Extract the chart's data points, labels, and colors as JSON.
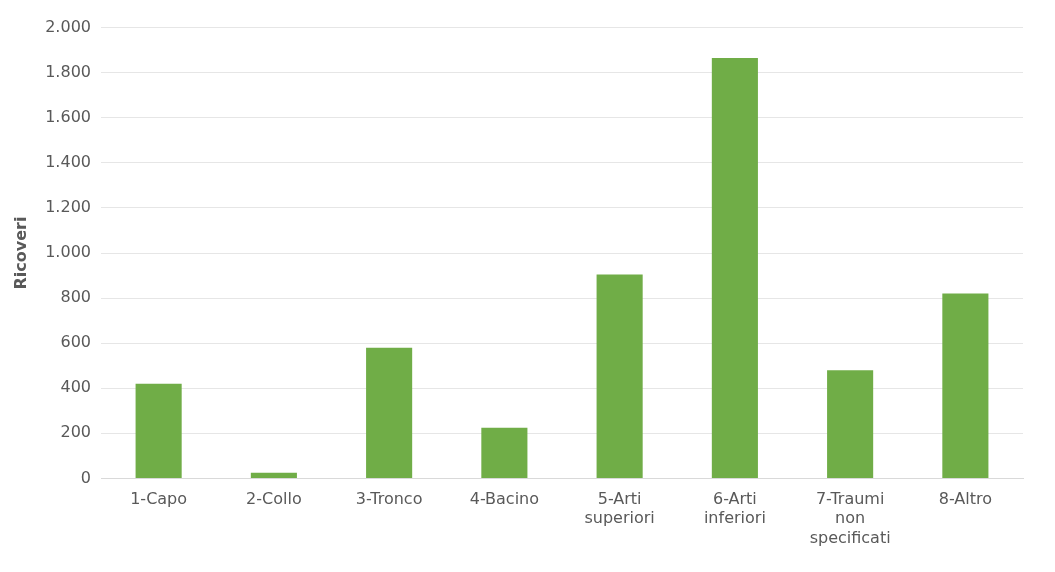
{
  "chart_data": {
    "type": "bar",
    "ylabel": "Ricoveri",
    "categories": [
      "1-Capo",
      "2-Collo",
      "3-Tronco",
      "4-Bacino",
      "5-Arti superiori",
      "6-Arti inferiori",
      "7-Traumi non specificati",
      "8-Altro"
    ],
    "values": [
      420,
      25,
      580,
      225,
      905,
      1865,
      480,
      820
    ],
    "color": "#70ad47",
    "ylim": [
      0,
      2000
    ],
    "yticks": [
      0,
      200,
      400,
      600,
      800,
      {
        "value": 1000,
        "label": "1.000"
      },
      {
        "value": 1200,
        "label": "1.200"
      },
      {
        "value": 1400,
        "label": "1.400"
      },
      {
        "value": 1600,
        "label": "1.600"
      },
      {
        "value": 1800,
        "label": "1.800"
      },
      {
        "value": 2000,
        "label": "2.000"
      }
    ],
    "grid": "y",
    "legend": false
  }
}
